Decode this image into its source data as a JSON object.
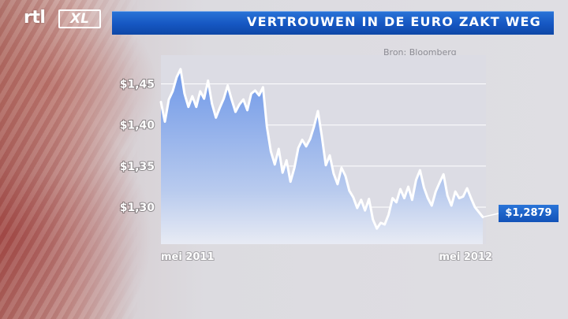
{
  "header": {
    "title": "VERTROUWEN IN DE EURO ZAKT WEG",
    "logo_rtl": "rtl",
    "logo_xl": "XL"
  },
  "source": "Bron: Bloomberg",
  "colors": {
    "title_bar": "#1657c2",
    "area_top": "#6f98e8",
    "area_bottom": "#ffffff",
    "line": "#ffffff",
    "label_box": "#1a5fc8"
  },
  "chart_data": {
    "type": "area",
    "title": "VERTROUWEN IN DE EURO ZAKT WEG",
    "xlabel": "",
    "ylabel": "",
    "x_tick_labels": [
      "mei 2011",
      "mei 2012"
    ],
    "y_ticks": [
      1.3,
      1.35,
      1.4,
      1.45
    ],
    "y_tick_labels": [
      "$1,30",
      "$1,35",
      "$1,40",
      "$1,45"
    ],
    "ylim": [
      1.255,
      1.485
    ],
    "grid": true,
    "last_value_label": "$1,2879",
    "series": [
      {
        "values": [
          1.428,
          1.404,
          1.431,
          1.441,
          1.458,
          1.468,
          1.438,
          1.422,
          1.435,
          1.422,
          1.441,
          1.432,
          1.454,
          1.426,
          1.409,
          1.421,
          1.432,
          1.448,
          1.431,
          1.416,
          1.425,
          1.431,
          1.418,
          1.438,
          1.442,
          1.436,
          1.446,
          1.398,
          1.368,
          1.352,
          1.371,
          1.342,
          1.357,
          1.331,
          1.348,
          1.372,
          1.382,
          1.374,
          1.383,
          1.398,
          1.417,
          1.386,
          1.351,
          1.363,
          1.341,
          1.328,
          1.348,
          1.338,
          1.32,
          1.312,
          1.299,
          1.309,
          1.296,
          1.31,
          1.285,
          1.274,
          1.281,
          1.279,
          1.291,
          1.311,
          1.306,
          1.322,
          1.311,
          1.325,
          1.309,
          1.333,
          1.345,
          1.324,
          1.311,
          1.302,
          1.319,
          1.33,
          1.34,
          1.314,
          1.302,
          1.319,
          1.311,
          1.313,
          1.323,
          1.311,
          1.3,
          1.294,
          1.288
        ]
      }
    ]
  }
}
